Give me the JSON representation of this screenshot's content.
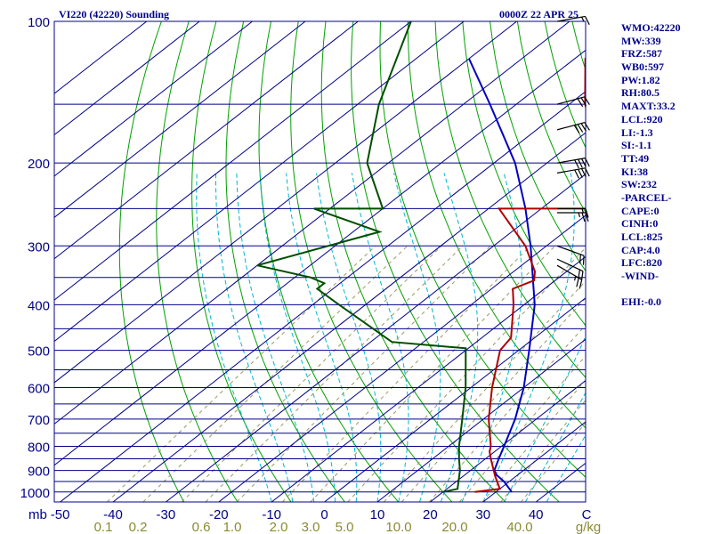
{
  "header": {
    "station": "VI220 (42220) Sounding",
    "time": "0000Z 22 APR 25"
  },
  "stats": [
    "WMO:42220",
    "MW:339",
    "FRZ:587",
    "WB0:597",
    "PW:1.82",
    "RH:80.5",
    "MAXT:33.2",
    "LCL:920",
    "LI:-1.3",
    "SI:-1.1",
    "TT:49",
    "KI:38",
    "SW:232",
    "-PARCEL-",
    "CAPE:0",
    "CINH:0",
    "LCL:825",
    "CAP:4.0",
    "LFC:820",
    "-WIND-",
    "",
    "EHI:-0.0"
  ],
  "colors": {
    "frame": "#00008b",
    "isobar": "#00008b",
    "isotherm": "#00008b",
    "dry_adiabat": "#00a000",
    "moist_adiabat": "#00b8d0",
    "mixing_ratio": "#9a9a60",
    "temperature": "#b00000",
    "dewpoint": "#004d00",
    "parcel": "#0000c0",
    "wind_barb": "#000000",
    "temp_axis_text": "#00008b",
    "mixing_axis_text": "#8a8a30"
  },
  "chart_data": {
    "type": "skew-t log-p sounding",
    "pressure_axis": {
      "unit_label": "mb",
      "range": [
        1050,
        100
      ],
      "scale": "log",
      "ticks": [
        100,
        200,
        300,
        400,
        500,
        600,
        700,
        800,
        900,
        1000
      ],
      "isobars": [
        100,
        150,
        200,
        250,
        300,
        350,
        400,
        450,
        500,
        550,
        600,
        650,
        700,
        750,
        800,
        850,
        900,
        950,
        1000
      ]
    },
    "temperature_axis": {
      "unit_label": "C",
      "range": [
        -50,
        50
      ],
      "ticks": [
        -50,
        -40,
        -30,
        -20,
        -10,
        0,
        10,
        20,
        30,
        40
      ]
    },
    "mixing_ratio_axis": {
      "unit_label": "g/kg",
      "ticks": [
        {
          "label": "0.1",
          "value": 0.1
        },
        {
          "label": "0.2",
          "value": 0.2
        },
        {
          "label": "0.6",
          "value": 0.6
        },
        {
          "label": "1.0",
          "value": 1.0
        },
        {
          "label": "2.0",
          "value": 2.0
        },
        {
          "label": "3.0",
          "value": 3.0
        },
        {
          "label": "5.0",
          "value": 5.0
        },
        {
          "label": "10.0",
          "value": 10.0
        },
        {
          "label": "20.0",
          "value": 20.0
        },
        {
          "label": "40.0",
          "value": 40.0
        }
      ]
    },
    "temperature_profile": [
      {
        "p": 1000,
        "t": 26
      },
      {
        "p": 985,
        "t": 30
      },
      {
        "p": 925,
        "t": 26
      },
      {
        "p": 850,
        "t": 21
      },
      {
        "p": 820,
        "t": 19
      },
      {
        "p": 800,
        "t": 18
      },
      {
        "p": 700,
        "t": 11
      },
      {
        "p": 600,
        "t": 4
      },
      {
        "p": 500,
        "t": -3.5
      },
      {
        "p": 470,
        "t": -4.5
      },
      {
        "p": 400,
        "t": -12
      },
      {
        "p": 370,
        "t": -16
      },
      {
        "p": 355,
        "t": -14
      },
      {
        "p": 340,
        "t": -16
      },
      {
        "p": 300,
        "t": -24
      },
      {
        "p": 250,
        "t": -38
      },
      {
        "p": 250,
        "t": -18
      },
      {
        "p": 200,
        "t": -30
      },
      {
        "p": 150,
        "t": -47
      },
      {
        "p": 120,
        "t": -58
      },
      {
        "p": 110,
        "t": -58
      },
      {
        "p": 100,
        "t": -62
      }
    ],
    "dewpoint_profile": [
      {
        "p": 1000,
        "t": 20
      },
      {
        "p": 985,
        "t": 22
      },
      {
        "p": 900,
        "t": 18
      },
      {
        "p": 850,
        "t": 15
      },
      {
        "p": 800,
        "t": 12
      },
      {
        "p": 700,
        "t": 6
      },
      {
        "p": 600,
        "t": -1
      },
      {
        "p": 500,
        "t": -10
      },
      {
        "p": 495,
        "t": -10.5
      },
      {
        "p": 480,
        "t": -26
      },
      {
        "p": 400,
        "t": -45
      },
      {
        "p": 370,
        "t": -53
      },
      {
        "p": 360,
        "t": -53
      },
      {
        "p": 350,
        "t": -57
      },
      {
        "p": 330,
        "t": -70
      },
      {
        "p": 280,
        "t": -55
      },
      {
        "p": 250,
        "t": -73
      },
      {
        "p": 250,
        "t": -60
      },
      {
        "p": 200,
        "t": -74
      },
      {
        "p": 150,
        "t": -86
      },
      {
        "p": 100,
        "t": -100
      }
    ],
    "parcel_profile": [
      {
        "p": 1000,
        "t": 33
      },
      {
        "p": 950,
        "t": 29
      },
      {
        "p": 920,
        "t": 26
      },
      {
        "p": 900,
        "t": 24.5
      },
      {
        "p": 850,
        "t": 22.5
      },
      {
        "p": 800,
        "t": 20.5
      },
      {
        "p": 700,
        "t": 16
      },
      {
        "p": 600,
        "t": 10
      },
      {
        "p": 500,
        "t": 2
      },
      {
        "p": 400,
        "t": -8
      },
      {
        "p": 300,
        "t": -23
      },
      {
        "p": 250,
        "t": -33
      },
      {
        "p": 200,
        "t": -46
      },
      {
        "p": 150,
        "t": -65
      },
      {
        "p": 120,
        "t": -80
      }
    ],
    "wind_barbs": [
      {
        "p": 100,
        "dir": 80,
        "kt": 15
      },
      {
        "p": 150,
        "dir": 75,
        "kt": 30
      },
      {
        "p": 170,
        "dir": 75,
        "kt": 40
      },
      {
        "p": 200,
        "dir": 80,
        "kt": 40
      },
      {
        "p": 210,
        "dir": 80,
        "kt": 40
      },
      {
        "p": 250,
        "dir": 90,
        "kt": 15
      },
      {
        "p": 255,
        "dir": 90,
        "kt": 25
      },
      {
        "p": 300,
        "dir": 110,
        "kt": 20
      },
      {
        "p": 320,
        "dir": 115,
        "kt": 20
      },
      {
        "p": 330,
        "dir": 120,
        "kt": 25
      }
    ]
  }
}
